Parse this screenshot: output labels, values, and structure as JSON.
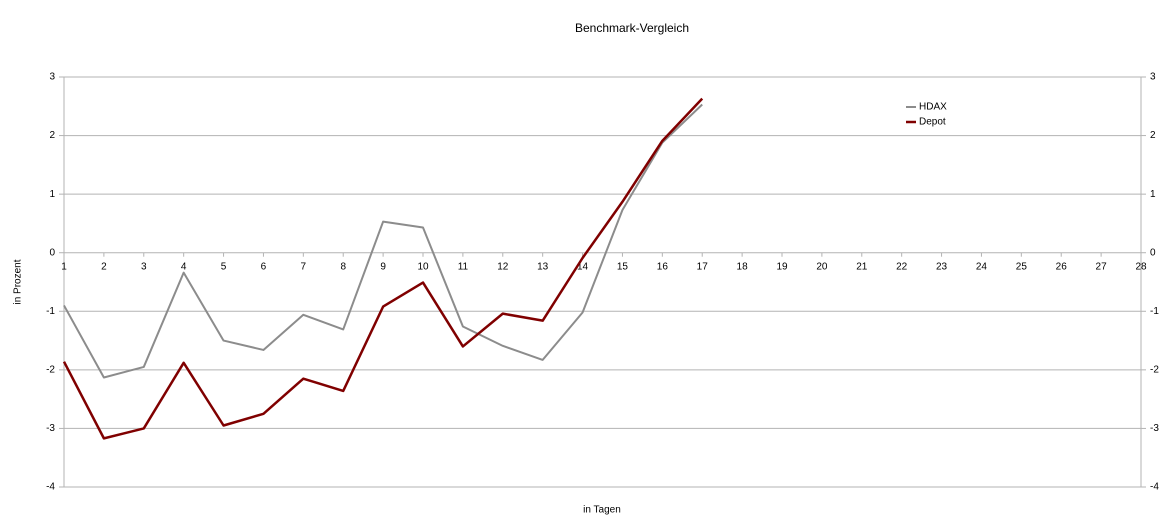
{
  "chart_data": {
    "type": "line",
    "title": "Benchmark-Vergleich",
    "x_label": "in Tagen",
    "y_label": "in Prozent",
    "x": [
      1,
      2,
      3,
      4,
      5,
      6,
      7,
      8,
      9,
      10,
      11,
      12,
      13,
      14,
      15,
      16,
      17
    ],
    "xlim": [
      1,
      28
    ],
    "xticks": [
      1,
      2,
      3,
      4,
      5,
      6,
      7,
      8,
      9,
      10,
      11,
      12,
      13,
      14,
      15,
      16,
      17,
      18,
      19,
      20,
      21,
      22,
      23,
      24,
      25,
      26,
      27,
      28
    ],
    "ylim": [
      -4,
      3
    ],
    "yticks": [
      -4,
      -3,
      -2,
      -1,
      0,
      1,
      2,
      3
    ],
    "y2lim": [
      -4,
      3
    ],
    "y2ticks": [
      -4,
      -3,
      -2,
      -1,
      0,
      1,
      2,
      3
    ],
    "grid": true,
    "legend": "upper right",
    "series": [
      {
        "name": "HDAX",
        "color": "#8c8c8c",
        "width": 2,
        "values": [
          -0.9,
          -2.13,
          -1.95,
          -0.34,
          -1.5,
          -1.66,
          -1.06,
          -1.31,
          0.53,
          0.43,
          -1.26,
          -1.59,
          -1.83,
          -1.02,
          0.73,
          1.88,
          2.53
        ]
      },
      {
        "name": "Depot",
        "color": "#800000",
        "width": 2.5,
        "values": [
          -1.86,
          -3.17,
          -3.0,
          -1.88,
          -2.95,
          -2.75,
          -2.15,
          -2.36,
          -0.92,
          -0.51,
          -1.6,
          -1.04,
          -1.16,
          -0.09,
          0.87,
          1.91,
          2.63
        ]
      }
    ]
  }
}
